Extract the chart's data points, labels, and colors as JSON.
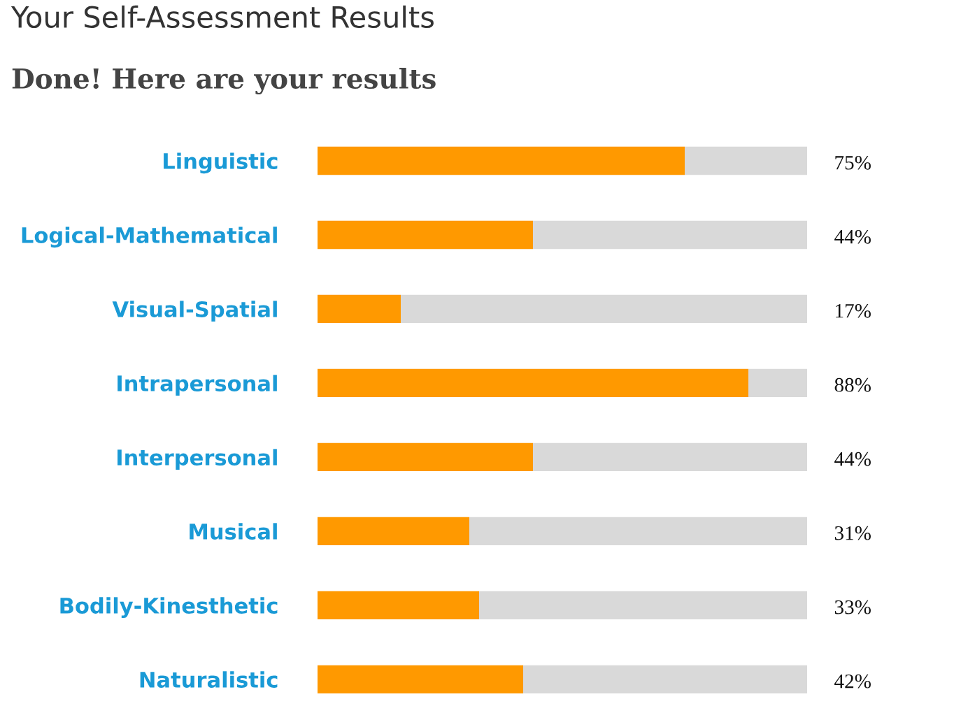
{
  "chart_data": {
    "type": "bar",
    "orientation": "horizontal",
    "stacked": true,
    "title": "Your Self-Assessment Results",
    "subtitle": "Done! Here are your results",
    "categories": [
      "Linguistic",
      "Logical-Mathematical",
      "Visual-Spatial",
      "Intrapersonal",
      "Interpersonal",
      "Musical",
      "Bodily-Kinesthetic",
      "Naturalistic"
    ],
    "series": [
      {
        "color": "#ff9900",
        "values": [
          75,
          44,
          17,
          88,
          44,
          31,
          33,
          42
        ],
        "value_labels": [
          "75%",
          "44%",
          "17%",
          "88%",
          "44%",
          "31%",
          "33%",
          "42%"
        ]
      },
      {
        "color": "#d9d9d9",
        "values": [
          25,
          56,
          83,
          12,
          56,
          69,
          67,
          58
        ]
      }
    ],
    "tick_labels": "y",
    "grid": false,
    "legend": false
  }
}
